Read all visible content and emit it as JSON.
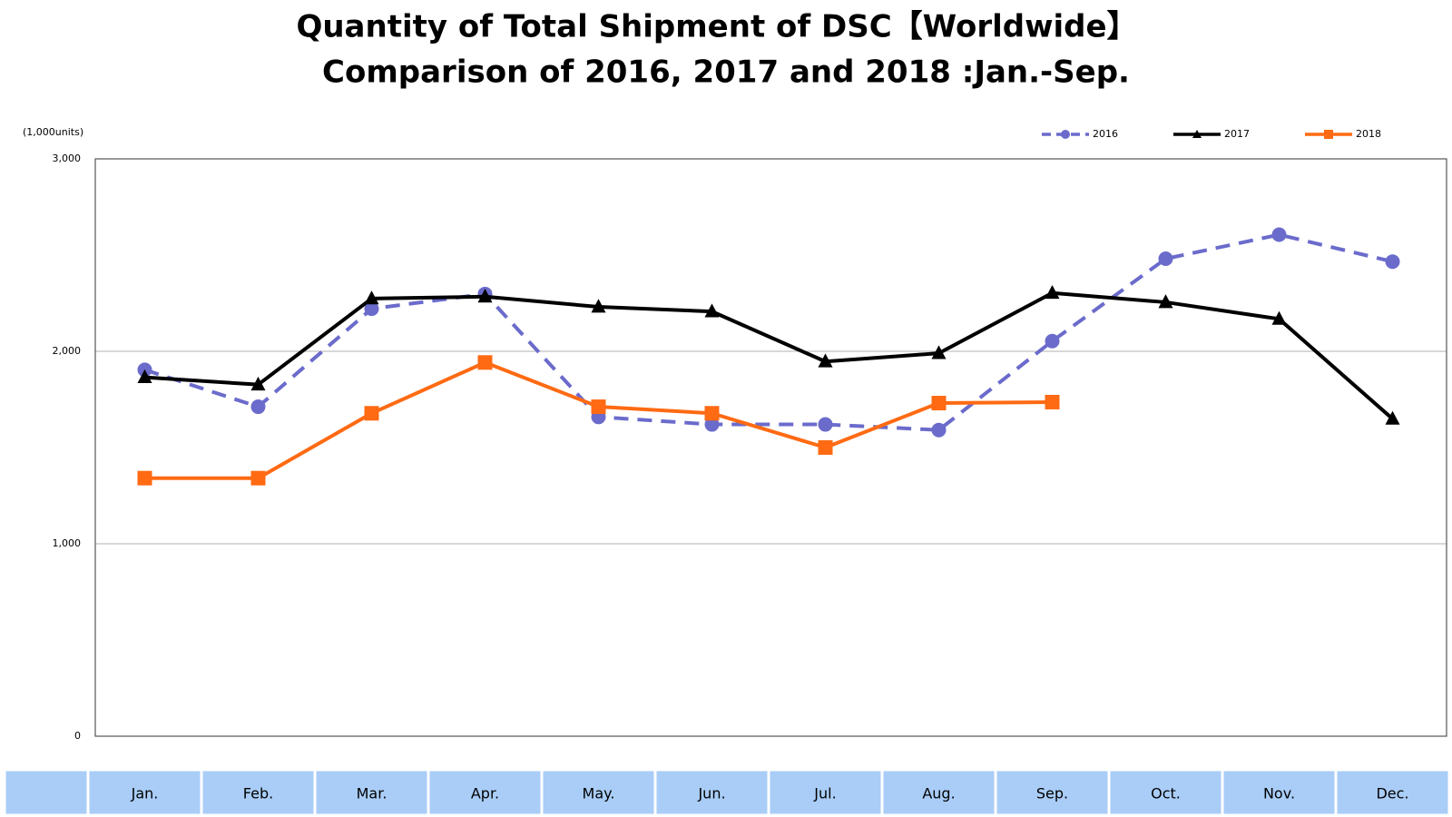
{
  "chart_data": {
    "type": "line",
    "title": "Quantity of Total Shipment of DSC【Worldwide】",
    "subtitle": "Comparison of 2016, 2017 and 2018 :Jan.-Sep.",
    "y_label": "(1,000units)",
    "categories": [
      "Jan.",
      "Feb.",
      "Mar.",
      "Apr.",
      "May.",
      "Jun.",
      "Jul.",
      "Aug.",
      "Sep.",
      "Oct.",
      "Nov.",
      "Dec."
    ],
    "series": [
      {
        "name": "2016",
        "color": "#6b6bcc",
        "line_style": "dashed",
        "marker": "circle",
        "values": [
          1904,
          1712,
          2221,
          2298,
          1659,
          1620,
          1620,
          1591,
          2053,
          2481,
          2606,
          2466
        ]
      },
      {
        "name": "2017",
        "color": "#000000",
        "line_style": "solid",
        "marker": "triangle",
        "values": [
          1865,
          1827,
          2274,
          2284,
          2231,
          2207,
          1947,
          1990,
          2303,
          2255,
          2168,
          1649
        ]
      },
      {
        "name": "2018",
        "color": "#ff6a13",
        "line_style": "solid",
        "marker": "square",
        "values": [
          1341,
          1341,
          1678,
          1942,
          1712,
          1678,
          1500,
          1731,
          1736,
          null,
          null,
          null
        ]
      }
    ],
    "ylim": [
      0,
      3000
    ],
    "yticks": [
      0,
      {
        "value": 1000,
        "label": "1,000"
      },
      {
        "value": 2000,
        "label": "2,000"
      },
      {
        "value": 3000,
        "label": "3,000"
      }
    ],
    "grid": true,
    "legend": "upper right"
  }
}
